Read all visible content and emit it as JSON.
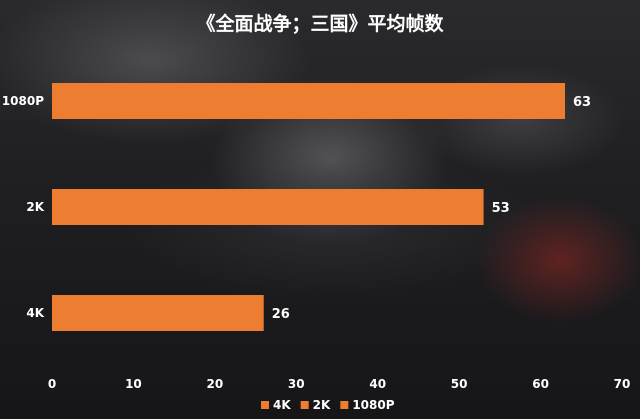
{
  "chart_data": {
    "type": "bar",
    "orientation": "horizontal",
    "title": "《全面战争；三国》平均帧数",
    "categories": [
      "1080P",
      "2K",
      "4K"
    ],
    "values": [
      63,
      53,
      26
    ],
    "xlim": [
      0,
      70
    ],
    "xticks": [
      "0",
      "10",
      "20",
      "30",
      "40",
      "50",
      "60",
      "70"
    ],
    "grid": false,
    "legend": {
      "position": "bottom-right",
      "entries": [
        "4K",
        "2K",
        "1080P"
      ]
    },
    "colors": {
      "bar": "#ED7D31",
      "text": "#FFFFFF"
    }
  }
}
